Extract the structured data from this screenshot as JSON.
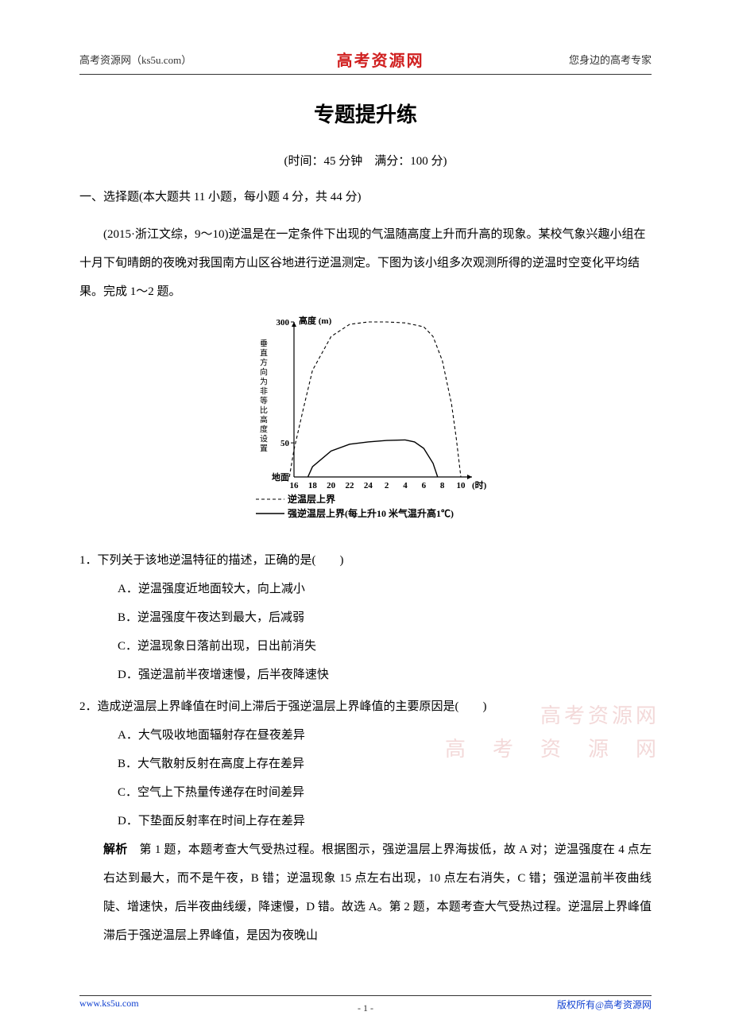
{
  "header": {
    "left": "高考资源网（ks5u.com）",
    "center": "高考资源网",
    "right": "您身边的高考专家"
  },
  "title": "专题提升练",
  "subtitle": "(时间：45 分钟　满分：100 分)",
  "section1_heading": "一、选择题(本大题共 11 小题，每小题 4 分，共 44 分)",
  "passage": "(2015·浙江文综，9～10)逆温是在一定条件下出现的气温随高度上升而升高的现象。某校气象兴趣小组在十月下旬晴朗的夜晚对我国南方山区谷地进行逆温测定。下图为该小组多次观测所得的逆温时空变化平均结果。完成 1～2 题。",
  "chart": {
    "type": "line",
    "y_axis_label": "高度 (m)",
    "y_axis_side_label": "垂直方向为非等比高度设置",
    "y_ticks": [
      "300",
      "50",
      "地面"
    ],
    "x_ticks": [
      "16",
      "18",
      "20",
      "22",
      "24",
      "2",
      "4",
      "6",
      "8",
      "10"
    ],
    "x_unit": "(时)",
    "legend": [
      {
        "style": "dashed",
        "label": "逆温层上界"
      },
      {
        "style": "solid",
        "label": "强逆温层上界(每上升10 米气温升高1℃)"
      }
    ],
    "colors": {
      "axis": "#000000",
      "text": "#000000",
      "dashed_line": "#000000",
      "solid_line": "#000000",
      "background": "#ffffff"
    },
    "font_size_axis": 11,
    "font_size_legend": 12,
    "dashed_curve": {
      "x": [
        15.5,
        16,
        17,
        18,
        20,
        22,
        24,
        2,
        4,
        6,
        7,
        8,
        9,
        9.5,
        10
      ],
      "y": [
        0,
        40,
        120,
        200,
        270,
        295,
        300,
        300,
        298,
        290,
        270,
        220,
        130,
        60,
        0
      ]
    },
    "solid_curve": {
      "x": [
        17.5,
        18,
        20,
        22,
        24,
        2,
        4,
        5,
        6,
        7,
        7.5
      ],
      "y": [
        0,
        15,
        38,
        48,
        52,
        55,
        56,
        52,
        42,
        20,
        0
      ]
    }
  },
  "q1": {
    "stem": "1．下列关于该地逆温特征的描述，正确的是(　　)",
    "A": "A．逆温强度近地面较大，向上减小",
    "B": "B．逆温强度午夜达到最大，后减弱",
    "C": "C．逆温现象日落前出现，日出前消失",
    "D": "D．强逆温前半夜增速慢，后半夜降速快"
  },
  "q2": {
    "stem": "2．造成逆温层上界峰值在时间上滞后于强逆温层上界峰值的主要原因是(　　)",
    "A": "A．大气吸收地面辐射存在昼夜差异",
    "B": "B．大气散射反射在高度上存在差异",
    "C": "C．空气上下热量传递存在时间差异",
    "D": "D．下垫面反射率在时间上存在差异"
  },
  "explain_label": "解析",
  "explain_text": "第 1 题，本题考查大气受热过程。根据图示，强逆温层上界海拔低，故 A 对；逆温强度在 4 点左右达到最大，而不是午夜，B 错；逆温现象 15 点左右出现，10 点左右消失，C 错；强逆温前半夜曲线陡、增速快，后半夜曲线缓，降速慢，D 错。故选 A。第 2 题，本题考查大气受热过程。逆温层上界峰值滞后于强逆温层上界峰值，是因为夜晚山",
  "watermark": {
    "line1": "高考资源网",
    "line2": "高　考　资　源　网"
  },
  "footer": {
    "left": "www.ks5u.com",
    "center": "- 1 -",
    "right": "版权所有@高考资源网"
  }
}
